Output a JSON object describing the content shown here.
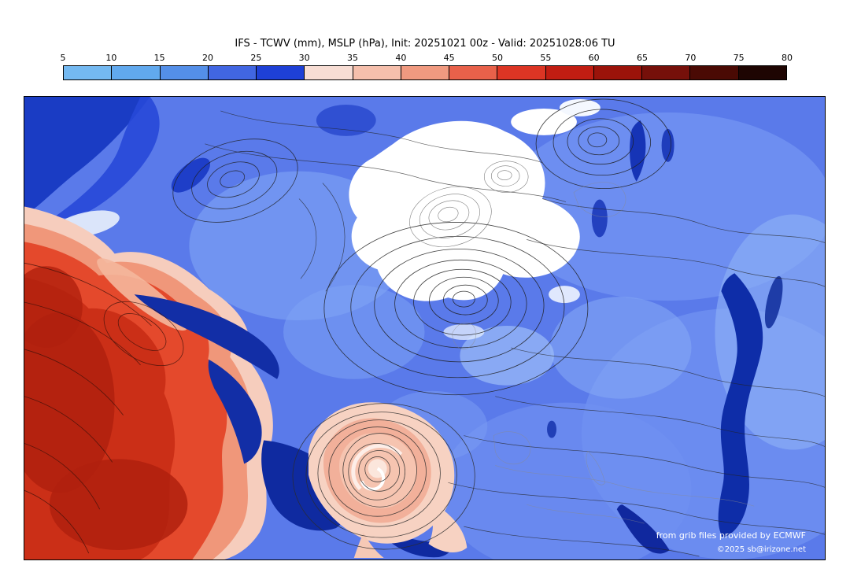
{
  "title": "IFS - TCWV (mm), MSLP (hPa), Init: 20251021 00z - Valid: 20251028:06 TU",
  "colorbar": {
    "ticks": [
      "5",
      "10",
      "15",
      "20",
      "25",
      "30",
      "35",
      "40",
      "45",
      "50",
      "55",
      "60",
      "65",
      "70",
      "75",
      "80"
    ],
    "segment_colors": [
      "#74b9f1",
      "#61a9ee",
      "#548fe8",
      "#4166e2",
      "#1e40d6",
      "#f7ddd4",
      "#f5bfac",
      "#f09a80",
      "#e8614a",
      "#dc3524",
      "#c11d12",
      "#9b130a",
      "#76100a",
      "#4a0a04",
      "#1e0502"
    ],
    "border_color": "#000000"
  },
  "map": {
    "attribution_line1": "from grib files provided by ECMWF",
    "attribution_line2": "©2025 sb@irizone.net",
    "base_color": "#5a7aea"
  }
}
